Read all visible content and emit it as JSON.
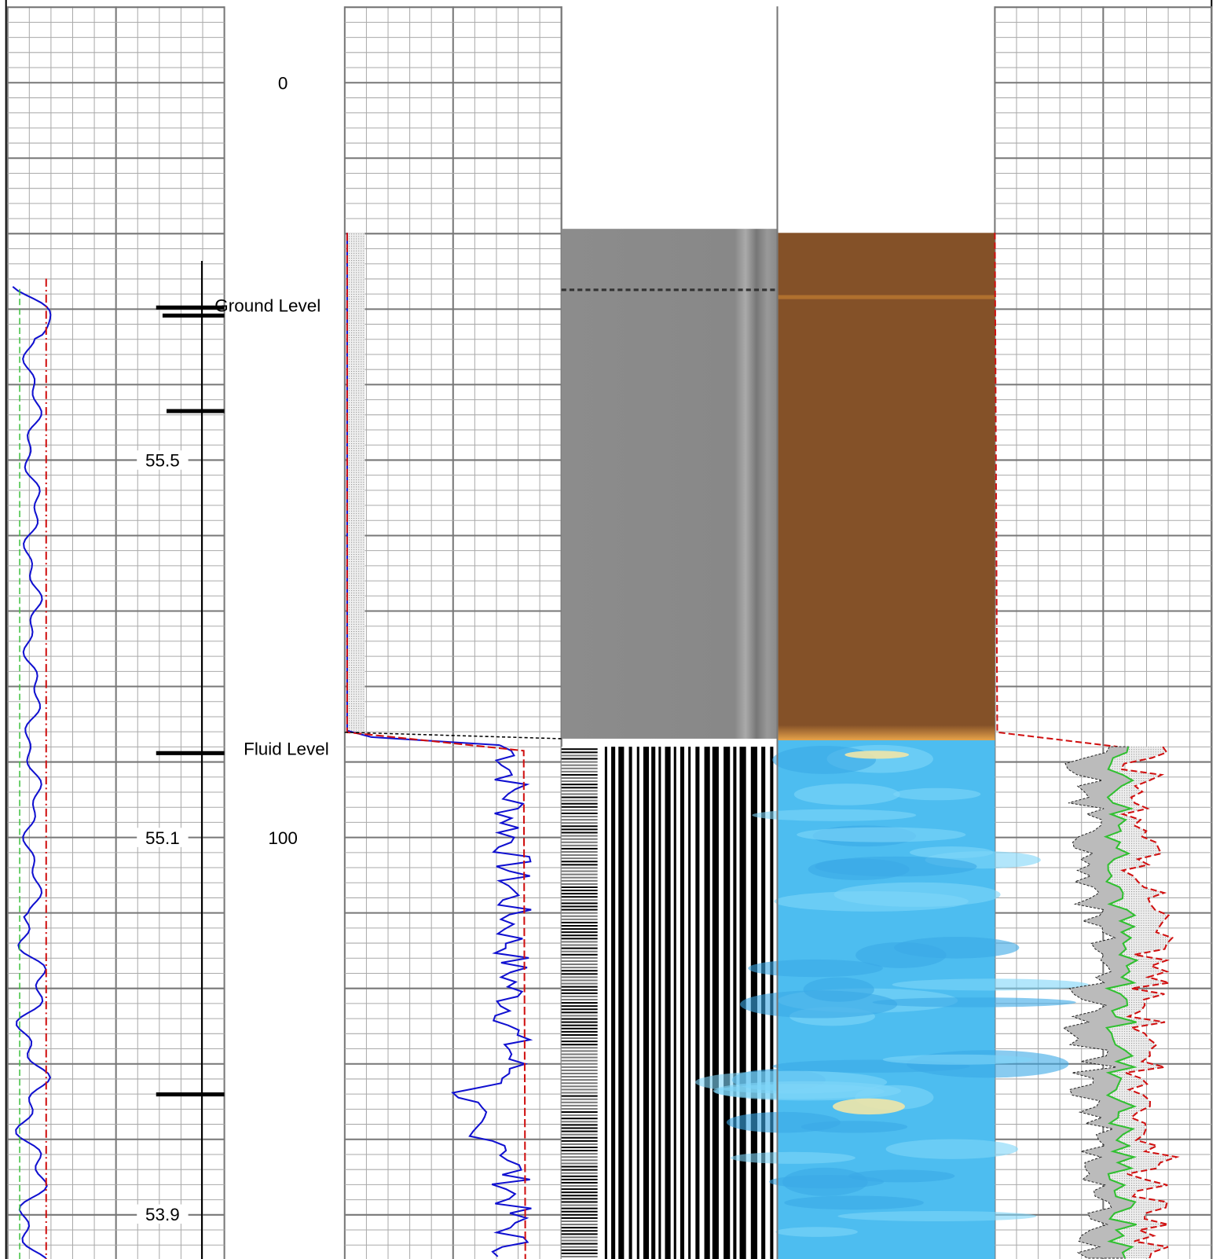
{
  "depth_track": {
    "labels": [
      "0",
      "100"
    ],
    "scale_labels": [
      "55.5",
      "55.1",
      "53.9"
    ]
  },
  "annotations": {
    "ground_level": "Ground Level",
    "fluid_level": "Fluid Level"
  }
}
